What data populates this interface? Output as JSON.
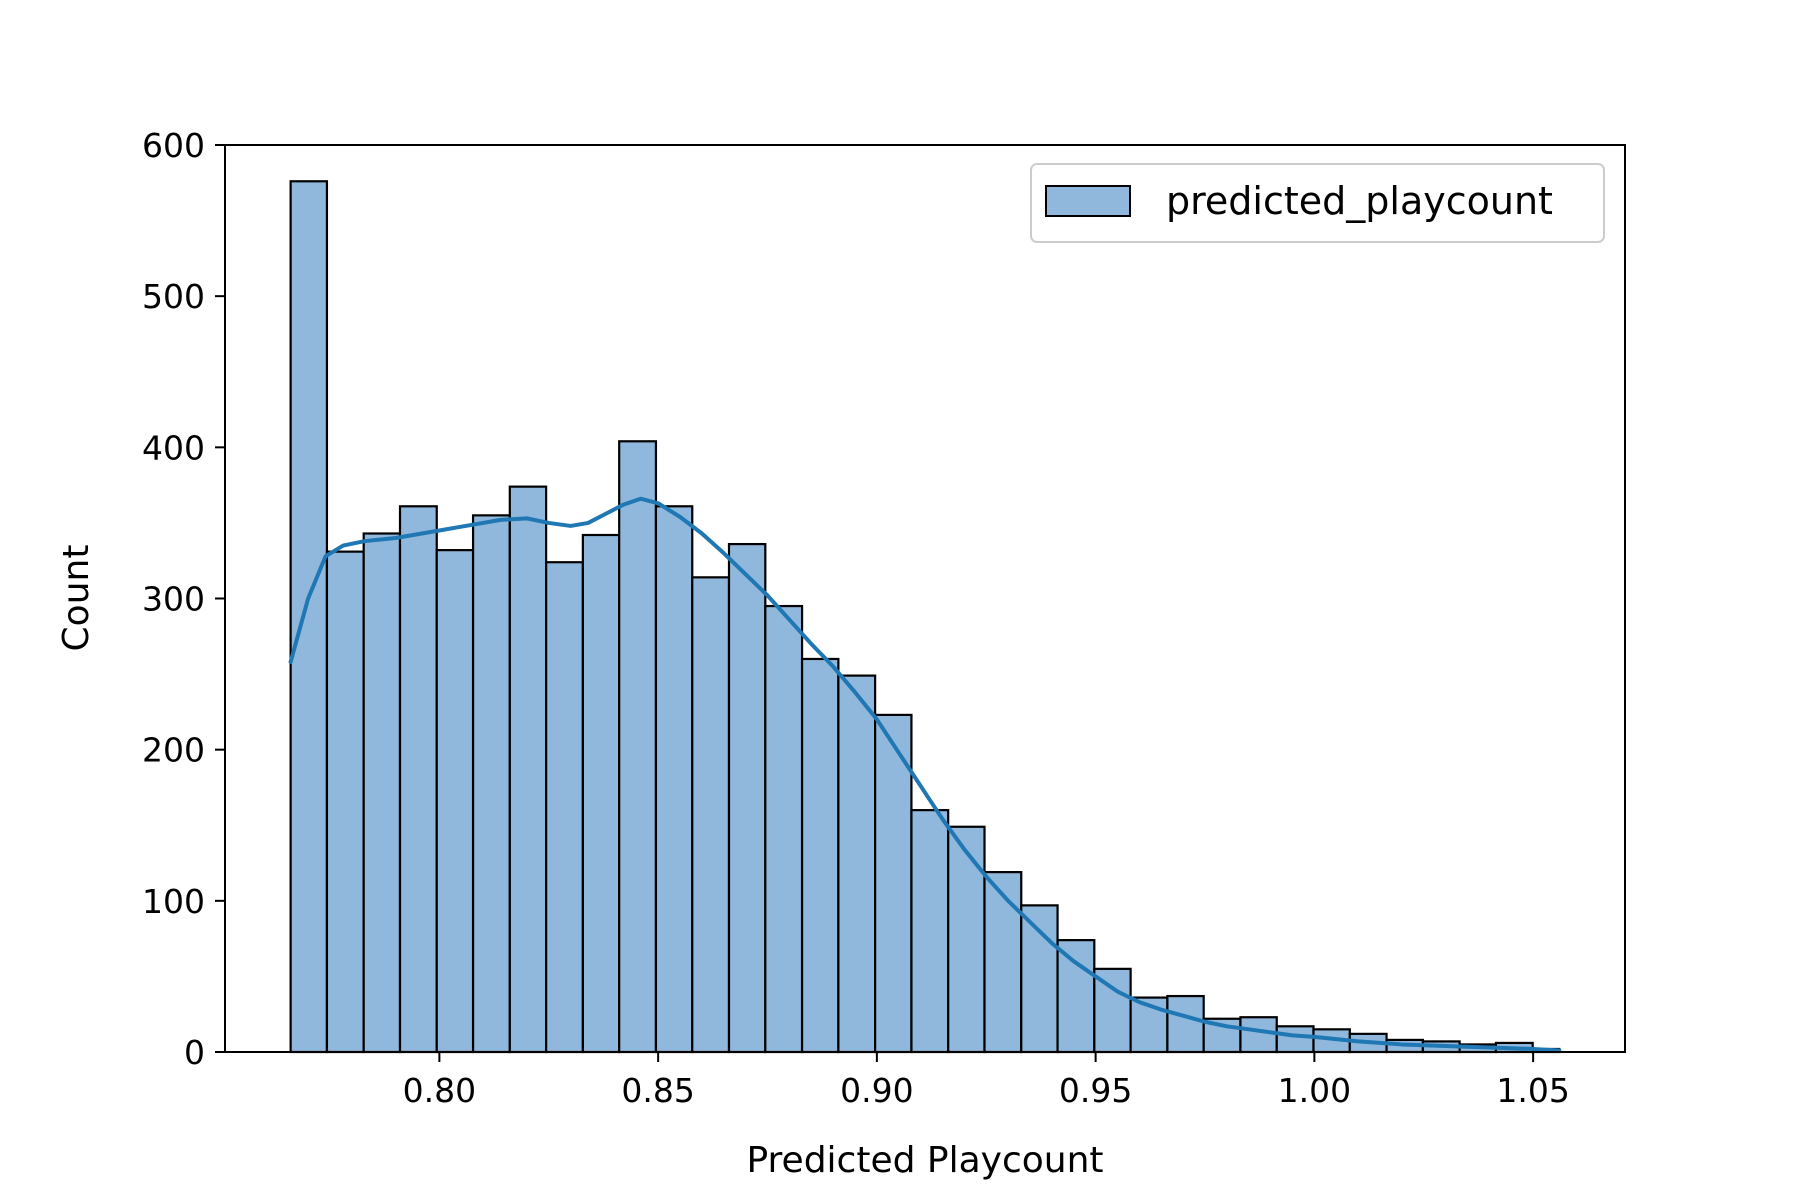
{
  "chart_data": {
    "type": "bar",
    "subtype": "histogram-with-kde",
    "xlabel": "Predicted Playcount",
    "ylabel": "Count",
    "xlim": [
      0.751,
      1.071
    ],
    "ylim": [
      0,
      600
    ],
    "x_ticks": [
      0.8,
      0.85,
      0.9,
      0.95,
      1.0,
      1.05
    ],
    "x_tick_labels": [
      "0.80",
      "0.85",
      "0.90",
      "0.95",
      "1.00",
      "1.05"
    ],
    "y_ticks": [
      0,
      100,
      200,
      300,
      400,
      500,
      600
    ],
    "y_tick_labels": [
      "0",
      "100",
      "200",
      "300",
      "400",
      "500",
      "600"
    ],
    "grid": false,
    "legend": {
      "position": "top-right",
      "entries": [
        "predicted_playcount"
      ]
    },
    "colors": {
      "bar_fill": "#8fb8dc",
      "bar_edge": "#000000",
      "kde_line": "#1f77b4"
    },
    "bin_edges": [
      0.766,
      0.7743,
      0.7827,
      0.791,
      0.7994,
      0.8077,
      0.8161,
      0.8244,
      0.8328,
      0.8411,
      0.8495,
      0.8578,
      0.8662,
      0.8745,
      0.8829,
      0.8912,
      0.8996,
      0.9079,
      0.9163,
      0.9246,
      0.933,
      0.9413,
      0.9497,
      0.958,
      0.9664,
      0.9747,
      0.9831,
      0.9914,
      0.9998,
      1.0081,
      1.0165,
      1.0248,
      1.0332,
      1.0415,
      1.0499,
      1.056
    ],
    "counts": [
      576,
      331,
      343,
      361,
      332,
      355,
      374,
      324,
      342,
      404,
      361,
      314,
      336,
      295,
      260,
      249,
      223,
      160,
      149,
      119,
      97,
      74,
      55,
      36,
      37,
      22,
      23,
      17,
      15,
      12,
      8,
      7,
      5,
      6,
      2
    ],
    "series": [
      {
        "name": "predicted_playcount",
        "kind": "kde",
        "x": [
          0.766,
          0.77,
          0.774,
          0.778,
          0.783,
          0.79,
          0.798,
          0.806,
          0.814,
          0.82,
          0.825,
          0.83,
          0.834,
          0.838,
          0.842,
          0.846,
          0.85,
          0.855,
          0.86,
          0.865,
          0.87,
          0.875,
          0.88,
          0.885,
          0.89,
          0.895,
          0.9,
          0.905,
          0.91,
          0.915,
          0.92,
          0.925,
          0.93,
          0.935,
          0.94,
          0.945,
          0.95,
          0.955,
          0.96,
          0.965,
          0.97,
          0.975,
          0.98,
          0.985,
          0.99,
          0.995,
          1.0,
          1.01,
          1.02,
          1.03,
          1.04,
          1.05,
          1.056
        ],
        "y": [
          258,
          300,
          328,
          335,
          338,
          340,
          344,
          348,
          352,
          353,
          350,
          348,
          350,
          356,
          362,
          366,
          363,
          354,
          343,
          330,
          316,
          302,
          286,
          270,
          255,
          238,
          220,
          198,
          176,
          154,
          134,
          116,
          100,
          86,
          72,
          60,
          50,
          40,
          33,
          28,
          24,
          20,
          17,
          15,
          13,
          11,
          10,
          7,
          5,
          4,
          3,
          2,
          1
        ]
      }
    ]
  }
}
